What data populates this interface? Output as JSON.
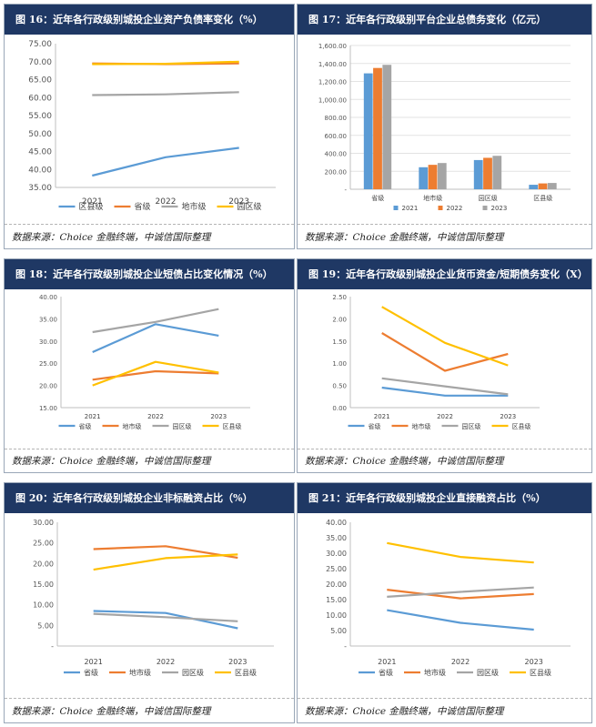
{
  "panels": [
    {
      "title": "图 16：近年各行政级别城投企业资产负债率变化（%）",
      "source": "数据来源：Choice 金融终端，中诚信国际整理",
      "chart_data": {
        "type": "line",
        "categories": [
          "2021",
          "2022",
          "2023"
        ],
        "ylim": [
          35,
          75
        ],
        "yticks": [
          "35.00",
          "40.00",
          "45.00",
          "50.00",
          "55.00",
          "60.00",
          "65.00",
          "70.00",
          "75.00"
        ],
        "series": [
          {
            "name": "区县级",
            "color": "#5b9bd5",
            "values": [
              38.3,
              43.4,
              46.0
            ]
          },
          {
            "name": "省级",
            "color": "#ed7d31",
            "values": [
              69.5,
              69.3,
              69.5
            ]
          },
          {
            "name": "地市级",
            "color": "#a5a5a5",
            "values": [
              60.7,
              60.9,
              61.5
            ]
          },
          {
            "name": "园区级",
            "color": "#ffc000",
            "values": [
              69.3,
              69.4,
              70.0
            ]
          }
        ]
      }
    },
    {
      "title": "图 17：近年各行政级别平台企业总债务变化（亿元）",
      "source": "数据来源：Choice 金融终端，中诚信国际整理",
      "chart_data": {
        "type": "bar",
        "categories": [
          "省级",
          "地市级",
          "园区级",
          "区县级"
        ],
        "ylim": [
          0,
          1600
        ],
        "yticks": [
          "-",
          "200.00",
          "400.00",
          "600.00",
          "800.00",
          "1,000.00",
          "1,200.00",
          "1,400.00",
          "1,600.00"
        ],
        "series": [
          {
            "name": "2021",
            "color": "#5b9bd5",
            "values": [
              1290,
              245,
              325,
              50
            ]
          },
          {
            "name": "2022",
            "color": "#ed7d31",
            "values": [
              1350,
              272,
              350,
              65
            ]
          },
          {
            "name": "2023",
            "color": "#a5a5a5",
            "values": [
              1385,
              292,
              372,
              70
            ]
          }
        ]
      }
    },
    {
      "title": "图 18：近年各行政级别城投企业短债占比变化情况（%）",
      "source": "数据来源：Choice 金融终端，中诚信国际整理",
      "chart_data": {
        "type": "line",
        "categories": [
          "2021",
          "2022",
          "2023"
        ],
        "ylim": [
          15,
          40
        ],
        "yticks": [
          "15.00",
          "20.00",
          "25.00",
          "30.00",
          "35.00",
          "40.00"
        ],
        "series": [
          {
            "name": "省级",
            "color": "#5b9bd5",
            "values": [
              27.5,
              33.8,
              31.2
            ]
          },
          {
            "name": "地市级",
            "color": "#ed7d31",
            "values": [
              21.3,
              23.2,
              22.7
            ]
          },
          {
            "name": "园区级",
            "color": "#a5a5a5",
            "values": [
              32.0,
              34.3,
              37.2
            ]
          },
          {
            "name": "区县级",
            "color": "#ffc000",
            "values": [
              20.0,
              25.3,
              22.9
            ]
          }
        ]
      }
    },
    {
      "title": "图 19：近年各行政级别城投企业货币资金/短期债务变化（X）",
      "source": "数据来源：Choice 金融终端，中诚信国际整理",
      "chart_data": {
        "type": "line",
        "categories": [
          "2021",
          "2022",
          "2023"
        ],
        "ylim": [
          0,
          2.5
        ],
        "yticks": [
          "0.00",
          "0.50",
          "1.00",
          "1.50",
          "2.00",
          "2.50"
        ],
        "series": [
          {
            "name": "省级",
            "color": "#5b9bd5",
            "values": [
              0.45,
              0.27,
              0.27
            ]
          },
          {
            "name": "地市级",
            "color": "#ed7d31",
            "values": [
              1.68,
              0.83,
              1.21
            ]
          },
          {
            "name": "园区级",
            "color": "#a5a5a5",
            "values": [
              0.66,
              0.48,
              0.3
            ]
          },
          {
            "name": "区县级",
            "color": "#ffc000",
            "values": [
              2.27,
              1.46,
              0.95
            ]
          }
        ]
      }
    },
    {
      "title": "图 20：近年各行政级别城投企业非标融资占比（%）",
      "source": "数据来源：Choice 金融终端，中诚信国际整理",
      "chart_data": {
        "type": "line",
        "categories": [
          "2021",
          "2022",
          "2023"
        ],
        "ylim": [
          0,
          30
        ],
        "yticks": [
          "-",
          "5.00",
          "10.00",
          "15.00",
          "20.00",
          "25.00",
          "30.00"
        ],
        "series": [
          {
            "name": "省级",
            "color": "#5b9bd5",
            "values": [
              8.5,
              8.0,
              4.3
            ]
          },
          {
            "name": "地市级",
            "color": "#ed7d31",
            "values": [
              23.5,
              24.2,
              21.4
            ]
          },
          {
            "name": "园区级",
            "color": "#a5a5a5",
            "values": [
              7.8,
              7.0,
              6.0
            ]
          },
          {
            "name": "区县级",
            "color": "#ffc000",
            "values": [
              18.5,
              21.3,
              22.2
            ]
          }
        ]
      }
    },
    {
      "title": "图 21：近年各行政级别城投企业直接融资占比（%）",
      "source": "数据来源：Choice 金融终端，中诚信国际整理",
      "chart_data": {
        "type": "line",
        "categories": [
          "2021",
          "2022",
          "2023"
        ],
        "ylim": [
          0,
          40
        ],
        "yticks": [
          "-",
          "5.00",
          "10.00",
          "15.00",
          "20.00",
          "25.00",
          "30.00",
          "35.00",
          "40.00"
        ],
        "series": [
          {
            "name": "省级",
            "color": "#5b9bd5",
            "values": [
              11.6,
              7.5,
              5.3
            ]
          },
          {
            "name": "地市级",
            "color": "#ed7d31",
            "values": [
              18.2,
              15.4,
              16.8
            ]
          },
          {
            "name": "园区级",
            "color": "#a5a5a5",
            "values": [
              15.9,
              17.5,
              18.9
            ]
          },
          {
            "name": "区县级",
            "color": "#ffc000",
            "values": [
              33.3,
              28.8,
              27.0
            ]
          }
        ]
      }
    }
  ]
}
